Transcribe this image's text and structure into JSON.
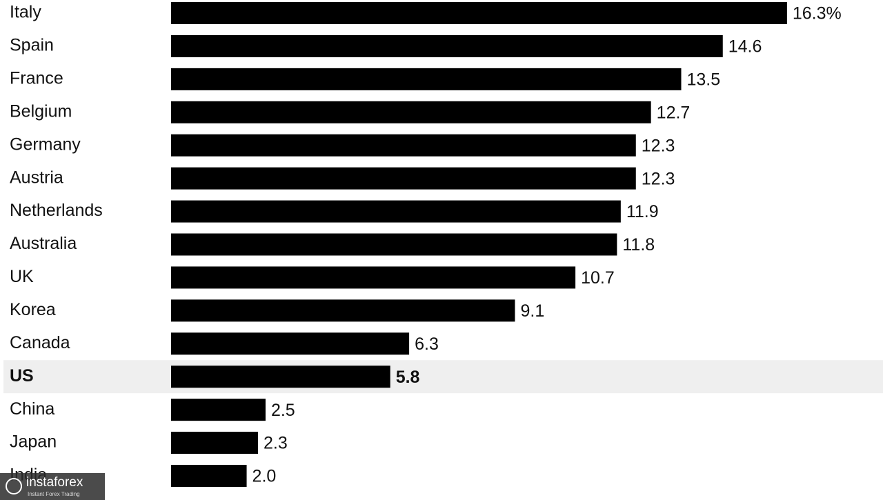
{
  "chart_data": {
    "type": "bar",
    "orientation": "horizontal",
    "categories": [
      "Italy",
      "Spain",
      "France",
      "Belgium",
      "Germany",
      "Austria",
      "Netherlands",
      "Australia",
      "UK",
      "Korea",
      "Canada",
      "US",
      "China",
      "Japan",
      "India"
    ],
    "values": [
      16.3,
      14.6,
      13.5,
      12.7,
      12.3,
      12.3,
      11.9,
      11.8,
      10.7,
      9.1,
      6.3,
      5.8,
      2.5,
      2.3,
      2.0
    ],
    "value_labels": [
      "16.3%",
      "14.6",
      "13.5",
      "12.7",
      "12.3",
      "12.3",
      "11.9",
      "11.8",
      "10.7",
      "9.1",
      "6.3",
      "5.8",
      "2.5",
      "2.3",
      "2.0"
    ],
    "color": "#000000",
    "highlight": "US",
    "xlim": [
      0,
      18
    ]
  },
  "watermark": {
    "brand": "instaforex",
    "tagline": "Instant Forex Trading"
  }
}
